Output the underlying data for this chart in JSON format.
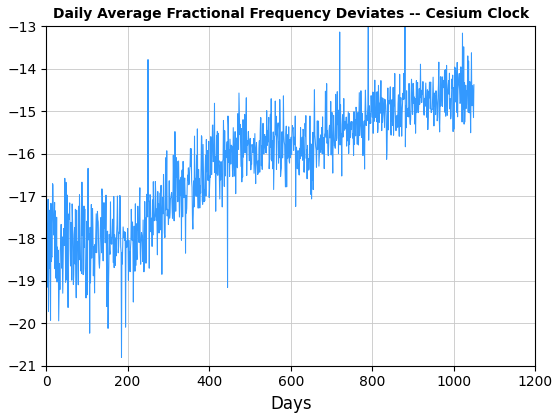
{
  "title": "Daily Average Fractional Frequency Deviates -- Cesium Clock",
  "xlabel": "Days",
  "ylabel": "",
  "line_color": "#3399ff",
  "line_width": 0.75,
  "xlim": [
    0,
    1200
  ],
  "ylim": [
    -21,
    -13
  ],
  "yticks": [
    -21,
    -20,
    -19,
    -18,
    -17,
    -16,
    -15,
    -14,
    -13
  ],
  "xticks": [
    0,
    200,
    400,
    600,
    800,
    1000,
    1200
  ],
  "grid": true,
  "background_color": "#ffffff",
  "figsize": [
    5.6,
    4.2
  ],
  "dpi": 100,
  "title_fontsize": 10,
  "tick_fontsize": 10,
  "xlabel_fontsize": 12
}
